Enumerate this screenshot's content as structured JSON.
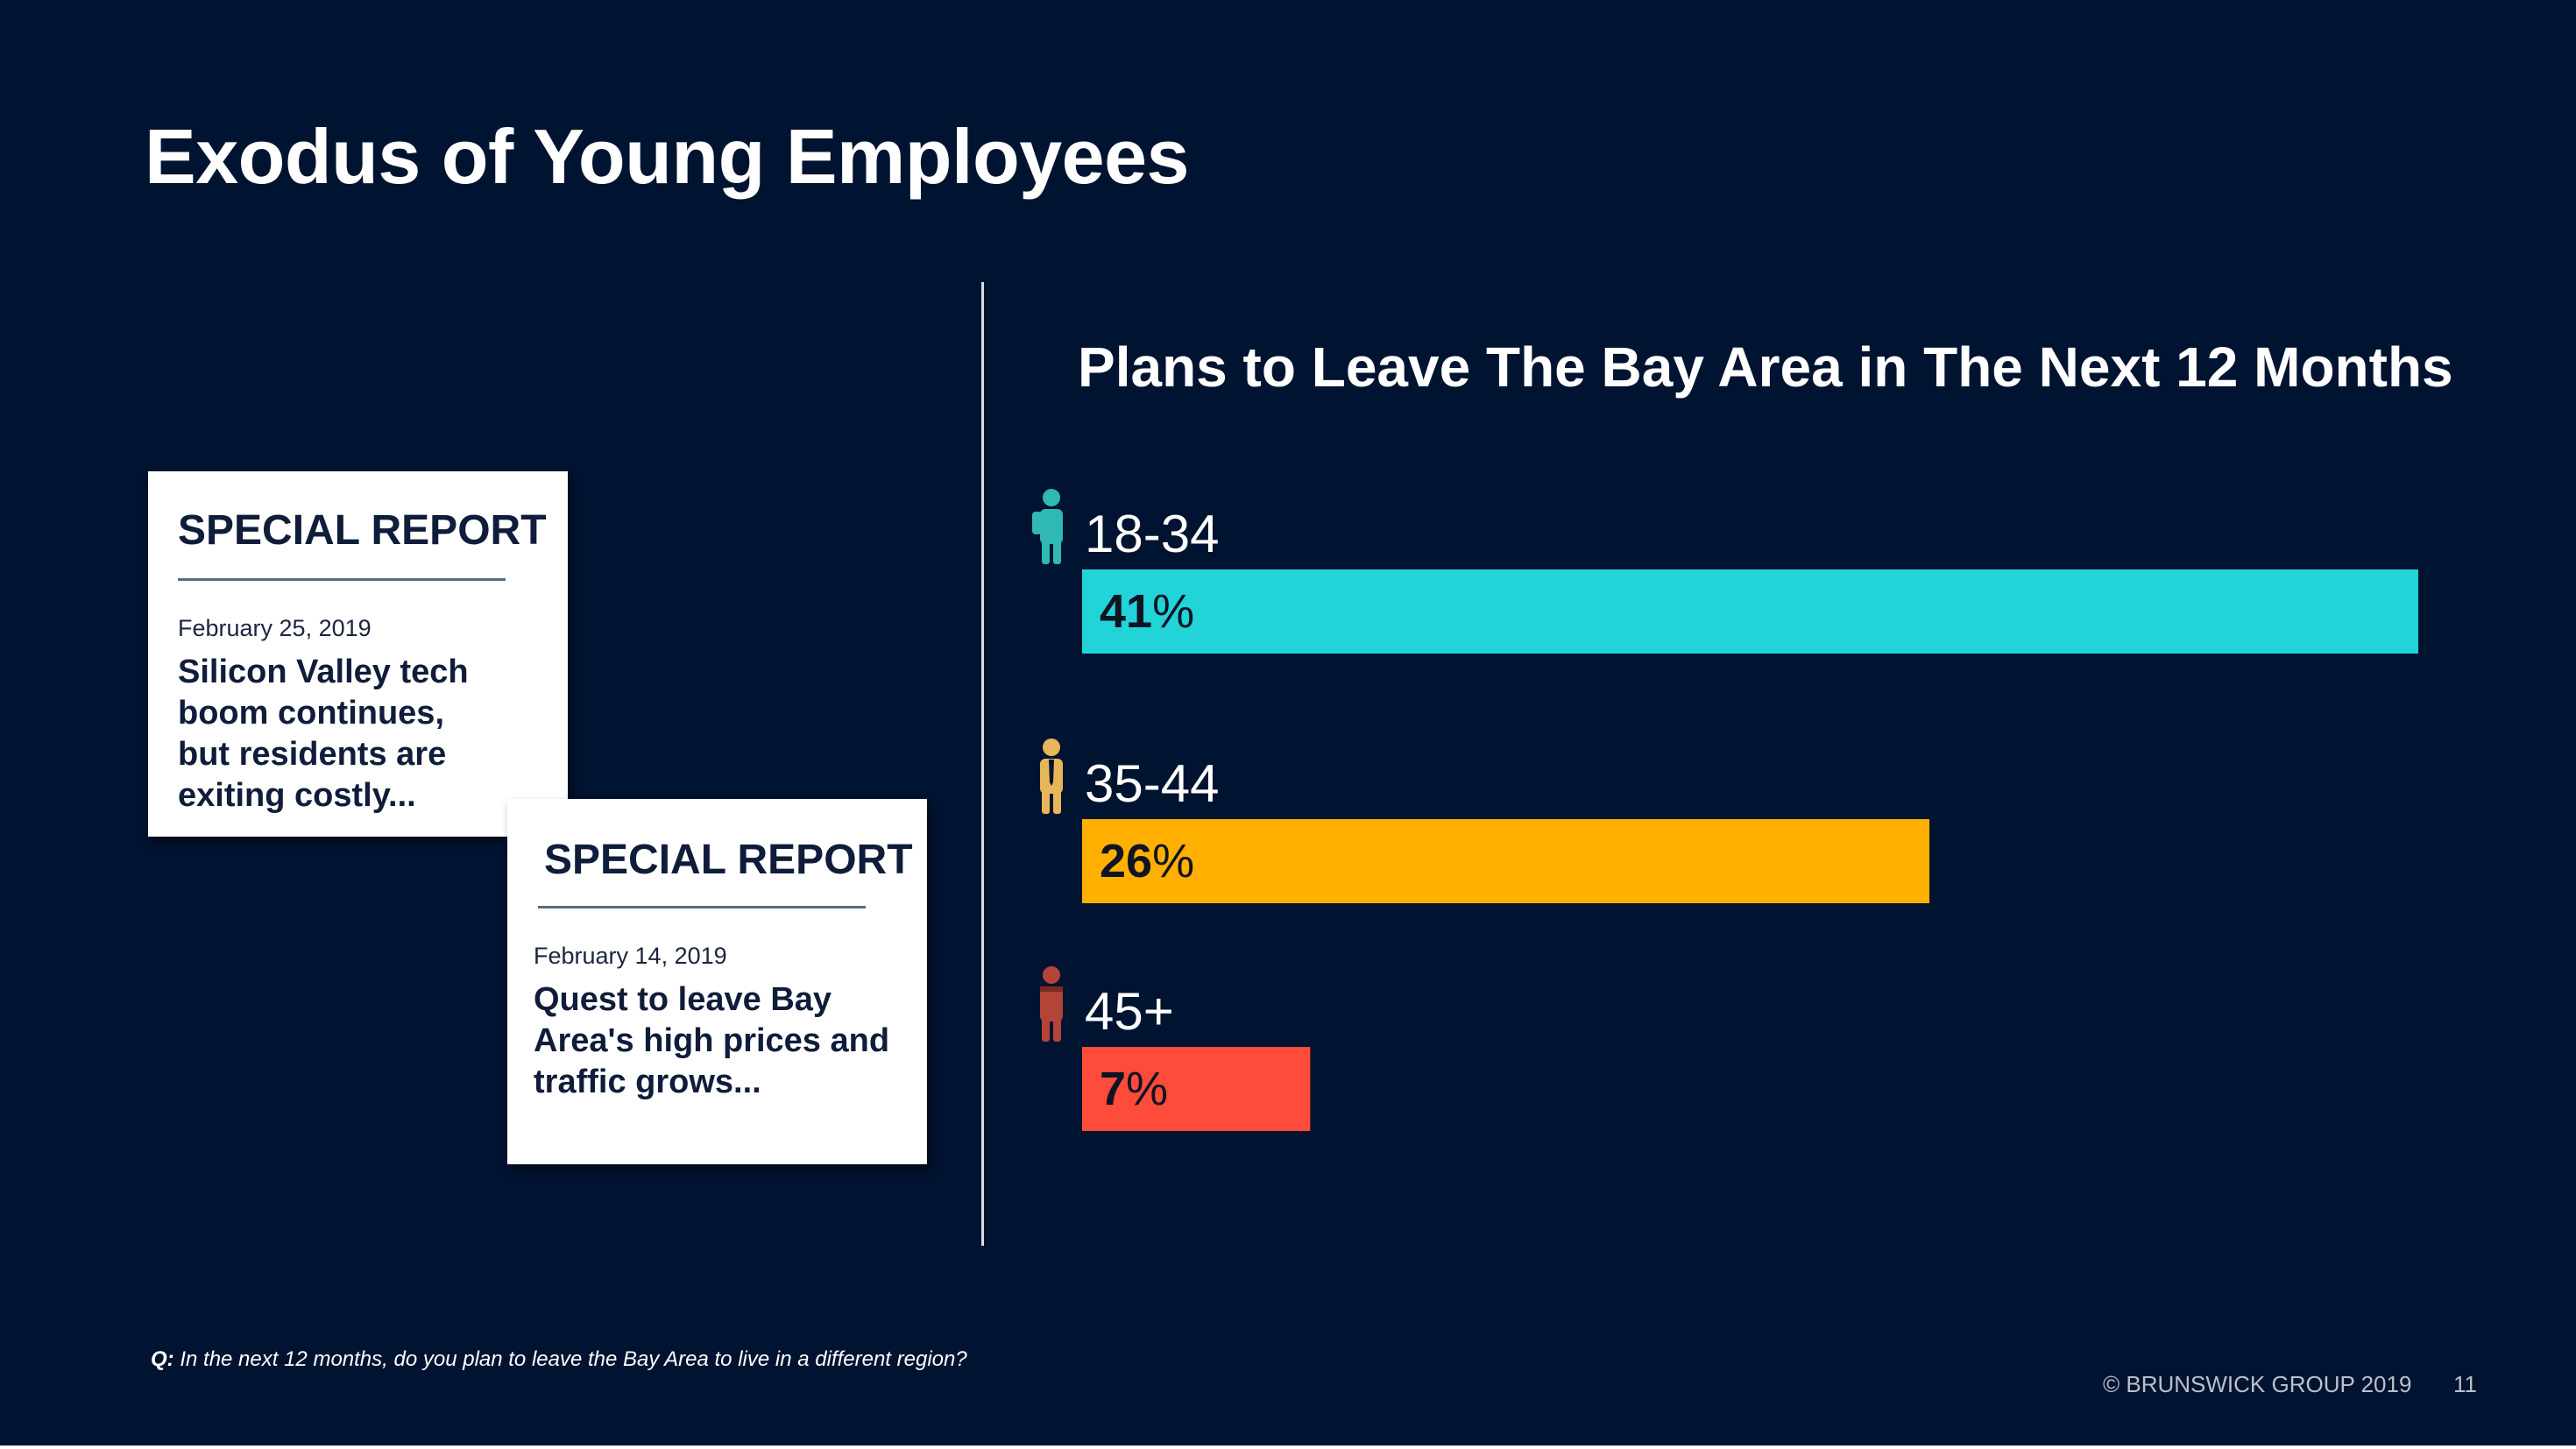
{
  "slide": {
    "title": "Exodus of Young Employees",
    "question_label": "Q:",
    "question_text": " In the next 12 months, do you plan to leave the Bay Area to live in a different region?",
    "copyright": "© BRUNSWICK GROUP 2019",
    "page_number": "11"
  },
  "reports": [
    {
      "header": "SPECIAL REPORT",
      "date": "February 25, 2019",
      "headline": "Silicon Valley tech\nboom continues,\nbut residents are\nexiting costly..."
    },
    {
      "header": "SPECIAL REPORT",
      "date": "February 14, 2019",
      "headline": "Quest to leave Bay\nArea's high prices and\ntraffic grows..."
    }
  ],
  "chart_data": {
    "type": "bar",
    "orientation": "horizontal",
    "title": "Plans to Leave The Bay Area in The Next 12 Months",
    "categories": [
      "18-34",
      "35-44",
      "45+"
    ],
    "values": [
      41,
      26,
      7
    ],
    "value_suffix": "%",
    "colors": [
      "#22d3d8",
      "#ffb000",
      "#ff4b3a"
    ],
    "icon_colors": [
      "#2fb8b4",
      "#e8b65a",
      "#b34438"
    ],
    "icons": [
      "young-person-backpack-icon",
      "person-tie-icon",
      "older-person-icon"
    ],
    "xlim": [
      0,
      41
    ]
  }
}
